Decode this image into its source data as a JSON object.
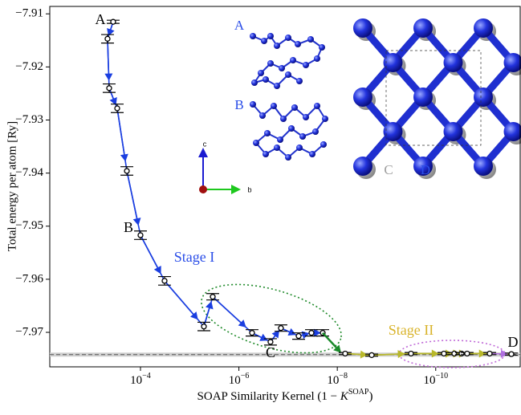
{
  "chart_data": {
    "type": "scatter",
    "xlabel": {
      "text": "SOAP Similarity Kernel (1 − ",
      "italic": "K",
      "superscript": "SOAP",
      "end": ")"
    },
    "ylabel": "Total energy per atom [Ry]",
    "xscale": "log",
    "xlim": [
      0.00697,
      1.92e-12
    ],
    "ylim": [
      -7.9765,
      -7.9086
    ],
    "xticks": [
      {
        "value": 0.0001,
        "label": "10",
        "exponent": "−4"
      },
      {
        "value": 1e-06,
        "label": "10",
        "exponent": "−6"
      },
      {
        "value": 1e-08,
        "label": "10",
        "exponent": "−8"
      },
      {
        "value": 1e-10,
        "label": "10",
        "exponent": "−10"
      }
    ],
    "yticks": [
      {
        "value": -7.91,
        "label": "−7.91"
      },
      {
        "value": -7.92,
        "label": "−7.92"
      },
      {
        "value": -7.93,
        "label": "−7.93"
      },
      {
        "value": -7.94,
        "label": "−7.94"
      },
      {
        "value": -7.95,
        "label": "−7.95"
      },
      {
        "value": -7.96,
        "label": "−7.96"
      },
      {
        "value": -7.97,
        "label": "−7.97"
      }
    ],
    "reference_line": -7.9742,
    "series": [
      {
        "color": "#1a3ee0",
        "x": [
          0.000359,
          0.000467,
          0.000433,
          0.000297,
          0.000189,
          0.0001,
          3.24e-05,
          5.14e-06,
          3.4e-06,
          5.4e-07,
          2.28e-07,
          1.4e-07,
          6.11e-08,
          3.35e-08,
          1.98e-08
        ],
        "y": [
          -7.9115,
          -7.9147,
          -7.924,
          -7.9278,
          -7.9396,
          -7.9517,
          -7.9603,
          -7.9689,
          -7.9633,
          -7.9701,
          -7.9718,
          -7.9692,
          -7.9707,
          -7.9701,
          -7.9701
        ],
        "errors": [
          0.0003,
          0.0008,
          0.0008,
          0.0008,
          0.0008,
          0.0008,
          0.0008,
          0.0008,
          0.0006,
          0.0006,
          0.0006,
          0.0006,
          0.0006,
          0.0006,
          0.0006
        ]
      },
      {
        "color": "#b8b82a",
        "x": [
          6.92e-09,
          2e-09,
          3.18e-10,
          6.82e-11,
          4.19e-11,
          2.99e-11,
          2.3e-11,
          8.02e-12,
          2.9e-12
        ],
        "y": [
          -7.974,
          -7.9743,
          -7.974,
          -7.974,
          -7.974,
          -7.974,
          -7.974,
          -7.974,
          -7.9741
        ],
        "errors": [
          0.0002,
          0.0002,
          0.0002,
          0.0002,
          0.0002,
          0.0002,
          0.0002,
          0.0002,
          0.0002
        ]
      }
    ],
    "annotations": [
      {
        "text": "A",
        "color": "#000000"
      },
      {
        "text": "B",
        "color": "#000000"
      },
      {
        "text": "C",
        "color": "#000000"
      },
      {
        "text": "D",
        "color": "#000000"
      },
      {
        "text": "Stage I",
        "color": "#2b4ee8"
      },
      {
        "text": "Stage II",
        "color": "#d9b42c"
      },
      {
        "text": "A",
        "color": "#2b4ee8"
      },
      {
        "text": "B",
        "color": "#2b4ee8"
      },
      {
        "text": "C",
        "color": "#a0a0a0"
      },
      {
        "text": "D",
        "color": "#2b4ee8"
      },
      {
        "text": "c",
        "color": "#000000"
      },
      {
        "text": "b",
        "color": "#000000"
      }
    ]
  }
}
